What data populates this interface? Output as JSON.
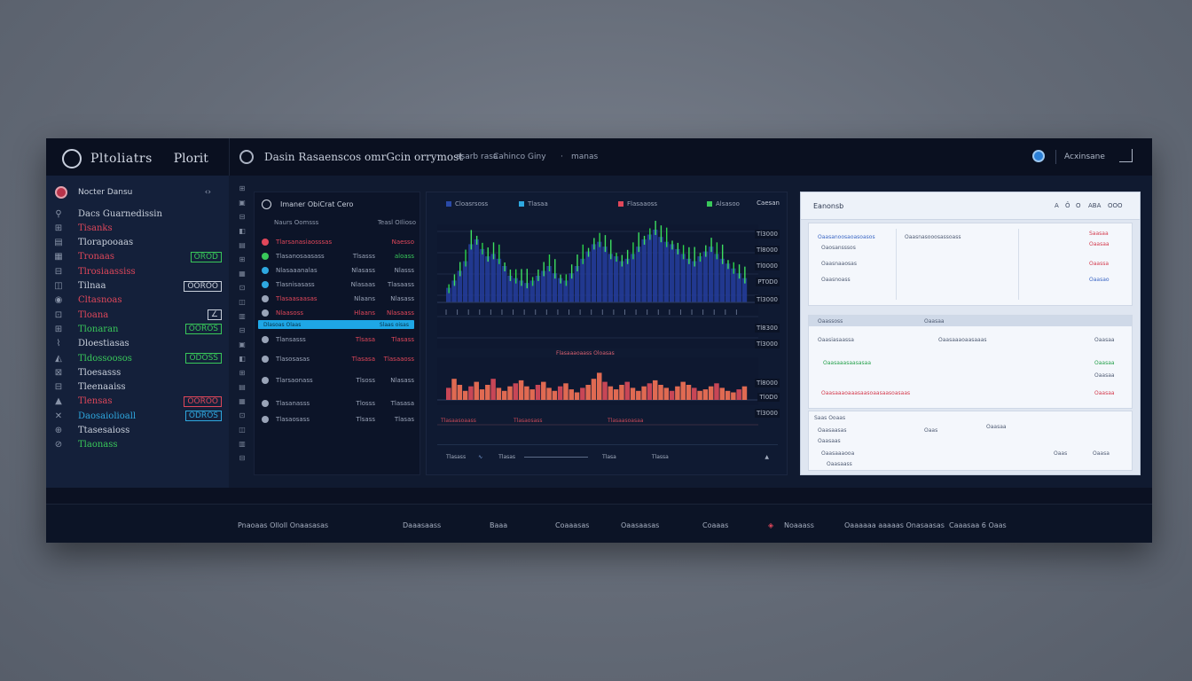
{
  "topbar": {
    "brand": "Pltoliatrs",
    "brand_suffix": "Plorit",
    "page_title": "Dasin Rasaenscos omrGcin orrymost",
    "nav": [
      "asarb rasa",
      "Cahinco Giny",
      "·",
      "manas"
    ],
    "account": "Acxinsane"
  },
  "sidebar": {
    "header": {
      "label": "Nocter Dansu",
      "chevron": "‹›"
    },
    "items": [
      {
        "icon": "⚲",
        "label": "Dacs Guarnedissin",
        "value": "",
        "color": "#c9d0dc",
        "value_color": ""
      },
      {
        "icon": "⊞",
        "label": "Tisanks",
        "value": "",
        "color": "#e0475a",
        "value_color": ""
      },
      {
        "icon": "▤",
        "label": "Tlorapooaas",
        "value": "",
        "color": "#c9d0dc",
        "value_color": ""
      },
      {
        "icon": "▦",
        "label": "Tronaas",
        "value": "OROD",
        "color": "#e0475a",
        "value_color": "#39c85a"
      },
      {
        "icon": "⊟",
        "label": "Tlrosiaassiss",
        "value": "",
        "color": "#e0475a",
        "value_color": ""
      },
      {
        "icon": "◫",
        "label": "Tilnaa",
        "value": "OOROO",
        "color": "#c9d0dc",
        "value_color": "#c9d0dc"
      },
      {
        "icon": "◉",
        "label": "Cltasnoas",
        "value": "",
        "color": "#e0475a",
        "value_color": ""
      },
      {
        "icon": "⊡",
        "label": "Tloana",
        "value": "∠",
        "color": "#e0475a",
        "value_color": "#c9d0dc"
      },
      {
        "icon": "⊞",
        "label": "Tlonaran",
        "value": "OOROS",
        "color": "#39c85a",
        "value_color": "#39c85a"
      },
      {
        "icon": "⌇",
        "label": "Dloestiasas",
        "value": "",
        "color": "#c9d0dc",
        "value_color": ""
      },
      {
        "icon": "◭",
        "label": "Tldossoosos",
        "value": "ODOSS",
        "color": "#39c85a",
        "value_color": "#39c85a"
      },
      {
        "icon": "⊠",
        "label": "Tloesasss",
        "value": "",
        "color": "#c9d0dc",
        "value_color": ""
      },
      {
        "icon": "⊟",
        "label": "Tleenaaiss",
        "value": "",
        "color": "#c9d0dc",
        "value_color": ""
      },
      {
        "icon": "▲",
        "label": "Tlensas",
        "value": "OOROO",
        "color": "#e0475a",
        "value_color": "#e0475a"
      },
      {
        "icon": "✕",
        "label": "Daosaiolioall",
        "value": "ODROS",
        "color": "#2ea8e0",
        "value_color": "#2ea8e0"
      },
      {
        "icon": "⊕",
        "label": "Ttasesaioss",
        "value": "",
        "color": "#c9d0dc",
        "value_color": ""
      },
      {
        "icon": "⊘",
        "label": "Tlaonass",
        "value": "",
        "color": "#39c85a",
        "value_color": ""
      }
    ]
  },
  "orders": {
    "title": "Imaner ObiCrat Cero",
    "subheaders": [
      "Naurs Oomsss",
      "Teasl OIlioso"
    ],
    "rows": [
      {
        "c1": "Tlarsanasiaosssas",
        "c2": "",
        "c3": "Naesso",
        "c1c": "#e0475a",
        "c2c": "",
        "c3c": "#e0475a",
        "icon": "#e0475a"
      },
      {
        "c1": "Tlasanosaasass",
        "c2": "Tlsasss",
        "c3": "aloass",
        "c1c": "#9aa4b8",
        "c2c": "#9aa4b8",
        "c3c": "#39c85a",
        "icon": "#39c85a"
      },
      {
        "c1": "Nlasaaanalas",
        "c2": "Nlasass",
        "c3": "Nlasss",
        "c1c": "#9aa4b8",
        "c2c": "#9aa4b8",
        "c3c": "#9aa4b8",
        "icon": "#2ea8e0"
      },
      {
        "c1": "Tlasnisasass",
        "c2": "Nlasaas",
        "c3": "Tlasaass",
        "c1c": "#9aa4b8",
        "c2c": "#9aa4b8",
        "c3c": "#9aa4b8",
        "icon": "#2ea8e0"
      },
      {
        "c1": "Tlasaasaasas",
        "c2": "Nlaans",
        "c3": "Nlasass",
        "c1c": "#e0475a",
        "c2c": "#9aa4b8",
        "c3c": "#9aa4b8",
        "icon": "#9aa4b8"
      },
      {
        "c1": "Nlaasoss",
        "c2": "Hlaans",
        "c3": "Nlasaass",
        "c1c": "#e0475a",
        "c2c": "#e0475a",
        "c3c": "#e0475a",
        "icon": "#9aa4b8"
      },
      {
        "c1": "Tlansasss",
        "c2": "Tlsasa",
        "c3": "Tlasass",
        "c1c": "#9aa4b8",
        "c2c": "#e0475a",
        "c3c": "#e0475a",
        "icon": "#9aa4b8"
      },
      {
        "c1": "Tlasosasas",
        "c2": "Tlasasa",
        "c3": "Tlasaaoss",
        "c1c": "#9aa4b8",
        "c2c": "#e0475a",
        "c3c": "#e0475a",
        "icon": "#9aa4b8"
      },
      {
        "c1": "Tlarsaonass",
        "c2": "Tlsoss",
        "c3": "Nlasass",
        "c1c": "#9aa4b8",
        "c2c": "#9aa4b8",
        "c3c": "#9aa4b8",
        "icon": "#9aa4b8"
      },
      {
        "c1": "Tlasanasss",
        "c2": "Tlosss",
        "c3": "Tlasasa",
        "c1c": "#9aa4b8",
        "c2c": "#9aa4b8",
        "c3c": "#9aa4b8",
        "icon": "#9aa4b8"
      },
      {
        "c1": "Tlasaosass",
        "c2": "Tlsass",
        "c3": "Tlasas",
        "c1c": "#9aa4b8",
        "c2c": "#9aa4b8",
        "c3c": "#9aa4b8",
        "icon": "#9aa4b8"
      }
    ],
    "highlight": {
      "left": "Dlasoas Olaas",
      "right": "Slaas oisas"
    }
  },
  "chart": {
    "title": "Caesan",
    "legend": [
      {
        "label": "Cloasrsoss",
        "color": "#2a4aa8"
      },
      {
        "label": "Tlasaa",
        "color": "#2ea8e0"
      },
      {
        "label": "Flasaaoss",
        "color": "#e0475a"
      },
      {
        "label": "Alsasoo",
        "color": "#39c85a"
      }
    ],
    "y_labels": [
      "Tl3000",
      "Tl8000",
      "Tl0000",
      "PT0D0",
      "Tl3000",
      "Tl8300",
      "Tl3000",
      "Tl8000",
      "Tl0D0",
      "Tl3000"
    ],
    "mid_label": "Flasaaaoaass Oloasas",
    "red_labels": [
      "Tlasaasoaass",
      "Tlasaosass",
      "Tlasaasoasaa"
    ],
    "footer": [
      "Tlasass",
      "Tlasas",
      "Tlasa",
      "Tlassa"
    ],
    "footer_pct": 0.62
  },
  "chart_data": {
    "type": "bar",
    "series": [
      {
        "name": "Cloasrsoss",
        "values": [
          12,
          18,
          26,
          34,
          48,
          52,
          44,
          38,
          40,
          36,
          30,
          22,
          20,
          18,
          16,
          18,
          22,
          26,
          30,
          24,
          20,
          18,
          24,
          30,
          36,
          42,
          48,
          50,
          46,
          40,
          38,
          34,
          36,
          40,
          46,
          52,
          56,
          60,
          54,
          50,
          48,
          44,
          40,
          36,
          34,
          38,
          42,
          46,
          40,
          36,
          32,
          28,
          24,
          20
        ]
      },
      {
        "name": "Flasaaoss",
        "values": [
          8,
          14,
          10,
          6,
          9,
          12,
          7,
          10,
          14,
          8,
          6,
          9,
          11,
          13,
          9,
          7,
          10,
          12,
          8,
          6,
          9,
          11,
          7,
          5,
          8,
          10,
          14,
          18,
          12,
          9,
          7,
          10,
          12,
          8,
          6,
          9,
          11,
          13,
          10,
          8,
          6,
          9,
          12,
          10,
          8,
          6,
          7,
          9,
          11,
          8,
          6,
          5,
          7,
          9
        ]
      }
    ]
  },
  "rpanel": {
    "title": "Eanonsb",
    "top_right": [
      "A",
      "Ô",
      "O",
      "ABA",
      "OOO"
    ],
    "card1": {
      "left": [
        "Oaasanoosaoasoasos",
        "Oaosansssos",
        "Oaasnaaosas",
        "Oaasnoass"
      ],
      "mid": "Oaasnasooosassoass",
      "right": [
        "Saasaa",
        "Oaasaa",
        "Oaassa",
        "Oaasao"
      ],
      "right_colors": [
        "r",
        "r",
        "r",
        "b"
      ]
    },
    "card2": {
      "head": [
        "Oaassoss",
        "Oaasaa"
      ],
      "lines": [
        "Oaasiasaassa",
        "Oaasaaaoaasaaas",
        "Oaasaaasaasasaa",
        "Oaasaaaoaaasaasoaasaasoasaas"
      ],
      "right": [
        "Oaasaa",
        "Oaasaa",
        "Oaasaa",
        "Oaasaa"
      ]
    },
    "card3": {
      "head": "Saas Ooaas",
      "lines": [
        "Oaasaasas",
        "Oaasaas",
        "Oaasaaaooa",
        "Oaasaass"
      ],
      "cols": [
        "Oaas",
        "Oaasaa",
        "Oaas",
        "Oaasa"
      ]
    }
  },
  "bottombar": {
    "labels": [
      "Pnaoaas Olloll Onaasasas",
      "Daaasaass",
      "Baaa",
      "Coaaasas",
      "Oaasaasas",
      "Coaaas",
      "Noaaass",
      "Oaaaaaa aaaaas Onasaasas",
      "Caaasaa 6 Oaas"
    ]
  }
}
